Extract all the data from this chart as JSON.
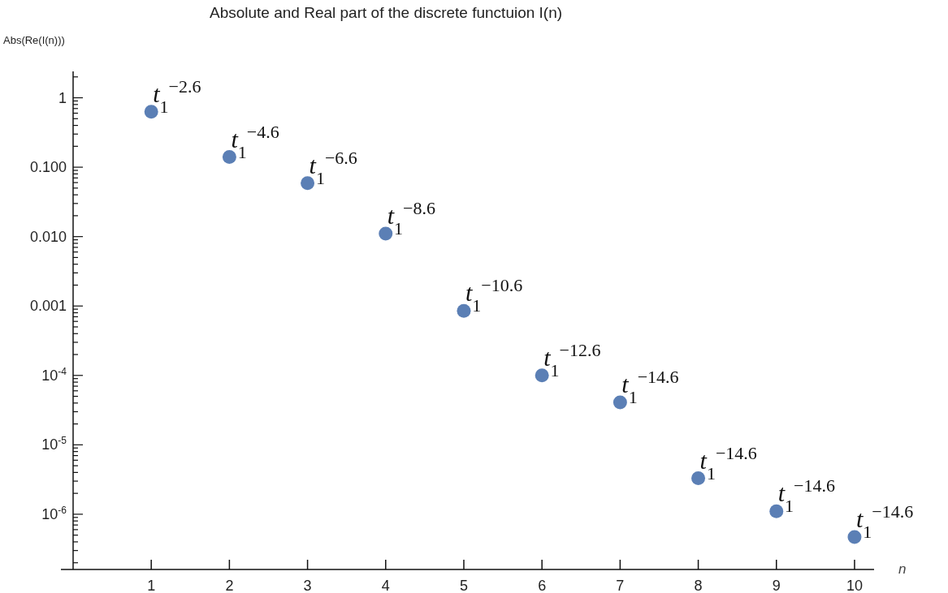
{
  "chart_data": {
    "type": "scatter",
    "title": "Absolute and Real part of the discrete  functuion  I(n)",
    "xlabel": "n",
    "ylabel": "Abs(Re(I(n)))",
    "log": "y",
    "marker": "circle",
    "grid": false,
    "x": [
      1,
      2,
      3,
      4,
      5,
      6,
      7,
      8,
      9,
      10
    ],
    "series": [
      {
        "color": "#5b7fb5",
        "values": [
          0.63,
          0.14,
          0.059,
          0.011,
          0.00085,
          0.0001,
          4.1e-05,
          3.3e-06,
          1.1e-06,
          4.7e-07
        ]
      }
    ],
    "xlim": [
      0,
      10.25
    ],
    "xticks": [
      1,
      2,
      3,
      4,
      5,
      6,
      7,
      8,
      9,
      10
    ],
    "ylim": [
      1.6e-07,
      2.4
    ],
    "yticks": [
      {
        "value": 1,
        "label": "1"
      },
      {
        "value": 0.1,
        "label": "0.100"
      },
      {
        "value": 0.01,
        "label": "0.010"
      },
      {
        "value": 0.001,
        "label": "0.001"
      },
      {
        "value": 0.0001,
        "label": "10$^{-4}$"
      },
      {
        "value": 1e-05,
        "label": "10$^{-5}$"
      },
      {
        "value": 1e-06,
        "label": "10$^{-6}$"
      },
      {
        "value": 2,
        "label": null
      },
      {
        "value": 0.2,
        "label": null
      },
      {
        "value": 0.3,
        "label": null
      },
      {
        "value": 0.4,
        "label": null
      },
      {
        "value": 0.5,
        "label": null
      },
      {
        "value": 0.6,
        "label": null
      },
      {
        "value": 0.7,
        "label": null
      },
      {
        "value": 0.8,
        "label": null
      },
      {
        "value": 0.9,
        "label": null
      },
      {
        "value": 0.02,
        "label": null
      },
      {
        "value": 0.03,
        "label": null
      },
      {
        "value": 0.04,
        "label": null
      },
      {
        "value": 0.05,
        "label": null
      },
      {
        "value": 0.06,
        "label": null
      },
      {
        "value": 0.07,
        "label": null
      },
      {
        "value": 0.08,
        "label": null
      },
      {
        "value": 0.09,
        "label": null
      },
      {
        "value": 0.002,
        "label": null
      },
      {
        "value": 0.003,
        "label": null
      },
      {
        "value": 0.004,
        "label": null
      },
      {
        "value": 0.005,
        "label": null
      },
      {
        "value": 0.006,
        "label": null
      },
      {
        "value": 0.007,
        "label": null
      },
      {
        "value": 0.008,
        "label": null
      },
      {
        "value": 0.009,
        "label": null
      },
      {
        "value": 0.0002,
        "label": null
      },
      {
        "value": 0.0003,
        "label": null
      },
      {
        "value": 0.0004,
        "label": null
      },
      {
        "value": 0.0005,
        "label": null
      },
      {
        "value": 0.0006,
        "label": null
      },
      {
        "value": 0.0007,
        "label": null
      },
      {
        "value": 0.0008,
        "label": null
      },
      {
        "value": 0.0009,
        "label": null
      },
      {
        "value": 2e-05,
        "label": null
      },
      {
        "value": 3e-05,
        "label": null
      },
      {
        "value": 4e-05,
        "label": null
      },
      {
        "value": 5e-05,
        "label": null
      },
      {
        "value": 6e-05,
        "label": null
      },
      {
        "value": 7e-05,
        "label": null
      },
      {
        "value": 8e-05,
        "label": null
      },
      {
        "value": 9e-05,
        "label": null
      },
      {
        "value": 2e-06,
        "label": null
      },
      {
        "value": 3e-06,
        "label": null
      },
      {
        "value": 4e-06,
        "label": null
      },
      {
        "value": 5e-06,
        "label": null
      },
      {
        "value": 6e-06,
        "label": null
      },
      {
        "value": 7e-06,
        "label": null
      },
      {
        "value": 8e-06,
        "label": null
      },
      {
        "value": 9e-06,
        "label": null
      },
      {
        "value": 2e-07,
        "label": null
      },
      {
        "value": 3e-07,
        "label": null
      },
      {
        "value": 4e-07,
        "label": null
      },
      {
        "value": 5e-07,
        "label": null
      },
      {
        "value": 6e-07,
        "label": null
      },
      {
        "value": 7e-07,
        "label": null
      },
      {
        "value": 8e-07,
        "label": null
      },
      {
        "value": 9e-07,
        "label": null
      }
    ],
    "annotations": [
      {
        "text": "t$_{1}$$^{−2.6}$",
        "x": 1,
        "y": 0.63
      },
      {
        "text": "t$_{1}$$^{−4.6}$",
        "x": 2,
        "y": 0.14
      },
      {
        "text": "t$_{1}$$^{−6.6}$",
        "x": 3,
        "y": 0.059
      },
      {
        "text": "t$_{1}$$^{−8.6}$",
        "x": 4,
        "y": 0.011
      },
      {
        "text": "t$_{1}$$^{−10.6}$",
        "x": 5,
        "y": 0.00085
      },
      {
        "text": "t$_{1}$$^{−12.6}$",
        "x": 6,
        "y": 0.0001
      },
      {
        "text": "t$_{1}$$^{−14.6}$",
        "x": 7,
        "y": 4.1e-05
      },
      {
        "text": "t$_{1}$$^{−14.6}$",
        "x": 8,
        "y": 3.3e-06
      },
      {
        "text": "t$_{1}$$^{−14.6}$",
        "x": 9,
        "y": 1.1e-06
      },
      {
        "text": "t$_{1}$$^{−14.6}$",
        "x": 10,
        "y": 4.7e-07
      }
    ]
  }
}
